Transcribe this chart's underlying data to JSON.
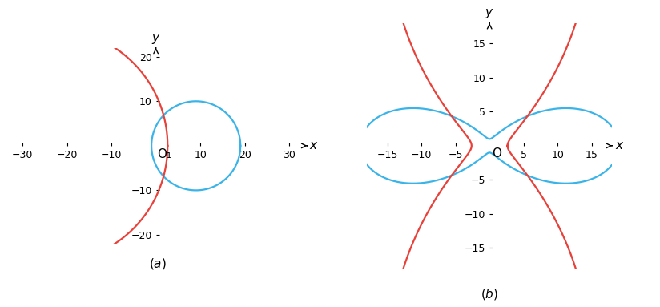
{
  "p": 50,
  "a4": 10,
  "e": 9,
  "cam_color": "#e8413a",
  "circle_color": "#3ab4e8",
  "linewidth": 1.6,
  "fig_width": 8.24,
  "fig_height": 3.83,
  "subplot_a": {
    "xlim": [
      -33,
      34
    ],
    "ylim": [
      -22,
      22
    ],
    "xticks": [
      -30,
      -20,
      -10,
      10,
      20,
      30
    ],
    "yticks": [
      -20,
      -10,
      10,
      20
    ],
    "origin_label": "O₁"
  },
  "subplot_b": {
    "xlim": [
      -18,
      18
    ],
    "ylim": [
      -18,
      18
    ],
    "xticks": [
      -15,
      -10,
      -5,
      5,
      10,
      15
    ],
    "yticks": [
      -15,
      -10,
      -5,
      5,
      10,
      15
    ],
    "origin_label": "O"
  }
}
